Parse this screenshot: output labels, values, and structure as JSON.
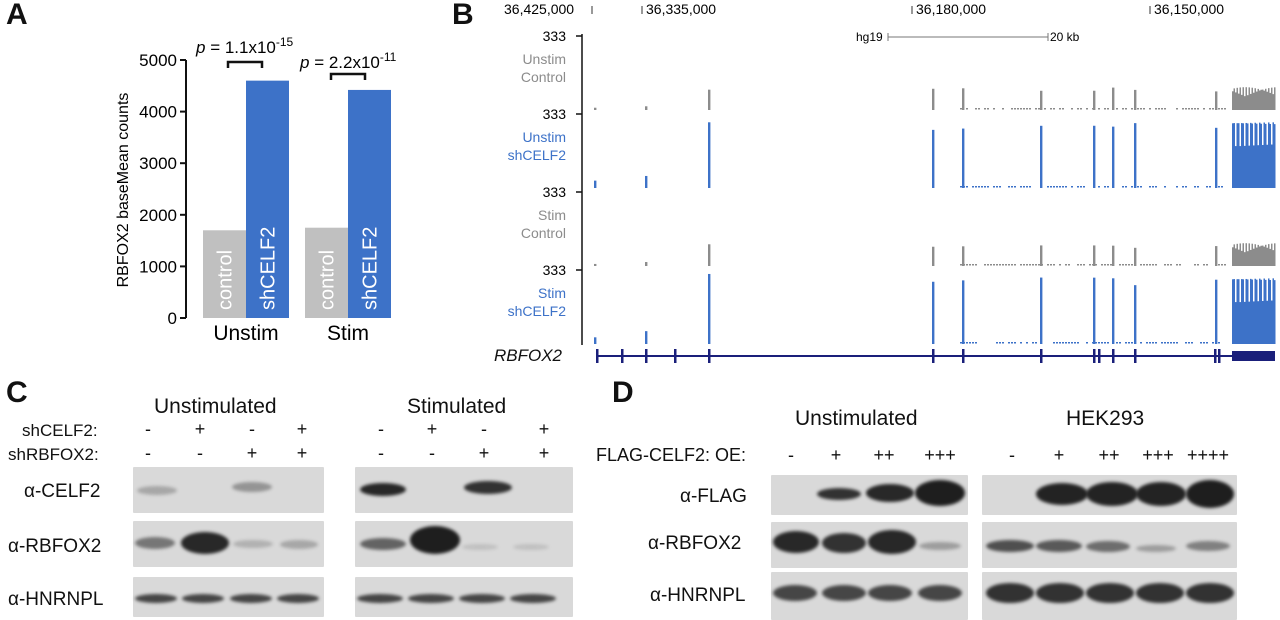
{
  "panels": {
    "a": "A",
    "b": "B",
    "c": "C",
    "d": "D"
  },
  "panel_a": {
    "chart_data": {
      "type": "bar",
      "ylabel": "RBFOX2  baseMean counts",
      "ylim": [
        0,
        5000
      ],
      "yticks": [
        "0",
        "1000",
        "2000",
        "3000",
        "4000",
        "5000"
      ],
      "groups": [
        "Unstim",
        "Stim"
      ],
      "bar_labels": [
        "control",
        "shCELF2"
      ],
      "series": [
        {
          "name": "control",
          "values": [
            1700,
            1750
          ],
          "color": "#c0c0c0"
        },
        {
          "name": "shCELF2",
          "values": [
            4600,
            4420
          ],
          "color": "#3d72c8"
        }
      ],
      "pvalues": [
        {
          "p": "p",
          "eq": " = 1.1x10",
          "exp": "-15"
        },
        {
          "p": "p",
          "eq": " = 2.2x10",
          "exp": "-11"
        }
      ]
    }
  },
  "panel_b": {
    "coords": [
      "36,425,000",
      "36,335,000",
      "36,180,000",
      "36,150,000"
    ],
    "scale": {
      "build": "hg19",
      "length": "20 kb"
    },
    "track_max": "333",
    "tracks": [
      {
        "line1": "Unstim",
        "line2": "Control",
        "color": "#8c8c8c"
      },
      {
        "line1": "Unstim",
        "line2": "shCELF2",
        "color": "#3d72c8"
      },
      {
        "line1": "Stim",
        "line2": "Control",
        "color": "#8c8c8c"
      },
      {
        "line1": "Stim",
        "line2": "shCELF2",
        "color": "#3d72c8"
      }
    ],
    "gene": "RBFOX2",
    "gene_color": "#1a1f7a"
  },
  "panel_c": {
    "groups": [
      "Unstimulated",
      "Stimulated"
    ],
    "row_labels": [
      "shCELF2:",
      "shRBFOX2:"
    ],
    "lanes_sh_celf2": [
      "-",
      "+",
      "-",
      "+"
    ],
    "lanes_sh_rbfox2": [
      "-",
      "-",
      "+",
      "+"
    ],
    "blots": [
      "α-CELF2",
      "α-RBFOX2",
      "α-HNRNPL"
    ]
  },
  "panel_d": {
    "groups": [
      "Unstimulated",
      "HEK293"
    ],
    "row_label": "FLAG-CELF2: OE:",
    "lanes_unstim": [
      "-",
      "+",
      "++",
      "+++"
    ],
    "lanes_hek": [
      "-",
      "+",
      "++",
      "+++",
      "++++"
    ],
    "blots": [
      "α-FLAG",
      "α-RBFOX2",
      "α-HNRNPL"
    ]
  }
}
